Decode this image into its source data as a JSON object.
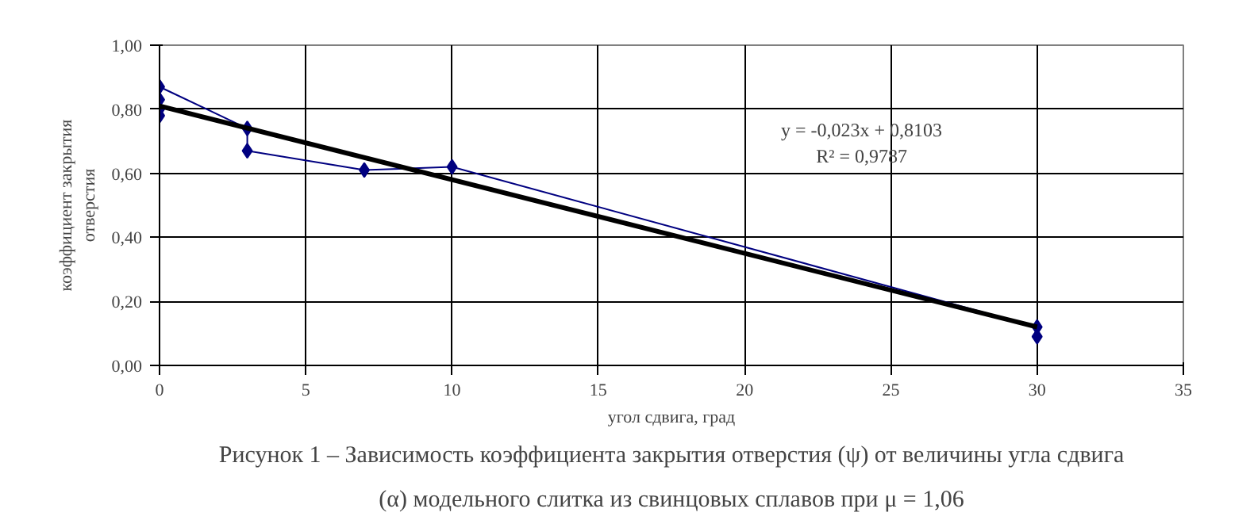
{
  "chart_data": {
    "type": "line",
    "xlabel": "угол сдвига, град",
    "ylabel": "коэффициент закрытия отверстия",
    "series": [
      {
        "marker": "diamond",
        "color": "#000080",
        "x": [
          0,
          0,
          0,
          0,
          3,
          3,
          7,
          10,
          30,
          30
        ],
        "values": [
          0.78,
          0.8,
          0.83,
          0.87,
          0.74,
          0.67,
          0.61,
          0.62,
          0.12,
          0.09
        ]
      },
      {
        "marker": "none",
        "color": "#000000",
        "x": [
          0,
          30
        ],
        "values": [
          0.81,
          0.12
        ]
      }
    ],
    "xlim": [
      0,
      35
    ],
    "xticks": [
      0,
      5,
      10,
      15,
      20,
      25,
      30,
      35
    ],
    "ylim": [
      0,
      1
    ],
    "yticks": [
      {
        "value": 0,
        "label": "0,00"
      },
      {
        "value": 0.2,
        "label": "0,20"
      },
      {
        "value": 0.4,
        "label": "0,40"
      },
      {
        "value": 0.6,
        "label": "0,60"
      },
      {
        "value": 0.8,
        "label": "0,80"
      },
      {
        "value": 1,
        "label": "1,00"
      }
    ],
    "grid": true,
    "annotations": [
      "y = -0,023x + 0,8103\nR² = 0,9787",
      "Рисунок 1 – Зависимость коэффициента закрытия отверстия (ψ) от величины угла сдвига",
      "(α) модельного слитка из свинцовых сплавов при μ = 1,06"
    ]
  }
}
